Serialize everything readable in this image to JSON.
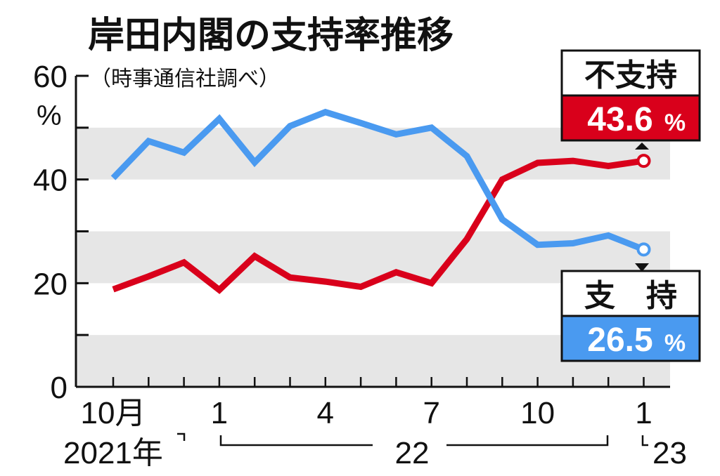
{
  "chart_data": {
    "type": "line",
    "title": "岸田内閣の支持率推移",
    "subtitle": "（時事通信社調べ）",
    "y_unit": "%",
    "ylim": [
      0,
      60
    ],
    "y_ticks": [
      0,
      20,
      40,
      60
    ],
    "grid": "alternating gray bands every 10 points",
    "x": [
      "2021-10",
      "2021-11",
      "2021-12",
      "2022-01",
      "2022-02",
      "2022-03",
      "2022-04",
      "2022-05",
      "2022-06",
      "2022-07",
      "2022-08",
      "2022-09",
      "2022-10",
      "2022-11",
      "2022-12",
      "2023-01"
    ],
    "x_tick_labels": [
      {
        "index": 0,
        "label": "10月"
      },
      {
        "index": 3,
        "label": "1"
      },
      {
        "index": 6,
        "label": "4"
      },
      {
        "index": 9,
        "label": "7"
      },
      {
        "index": 12,
        "label": "10"
      },
      {
        "index": 15,
        "label": "1"
      }
    ],
    "year_labels": {
      "y2021": "2021年",
      "y2022": "22",
      "y2023": "23"
    },
    "series": [
      {
        "name": "不支持",
        "color": "#d9001b",
        "values": [
          18.8,
          21.3,
          24.0,
          18.7,
          25.2,
          21.1,
          20.3,
          19.3,
          22.1,
          20.0,
          28.5,
          40.0,
          43.2,
          43.6,
          42.6,
          43.6
        ]
      },
      {
        "name": "支持",
        "color": "#4a9af0",
        "values": [
          40.3,
          47.4,
          45.2,
          51.7,
          43.3,
          50.3,
          53.0,
          50.9,
          48.7,
          50.0,
          44.5,
          32.3,
          27.4,
          27.7,
          29.2,
          26.5
        ]
      }
    ],
    "callouts": [
      {
        "series": "不支持",
        "label": "不支持",
        "value": "43.6",
        "unit": "%"
      },
      {
        "series": "支持",
        "label": "支　持",
        "value": "26.5",
        "unit": "%"
      }
    ]
  }
}
